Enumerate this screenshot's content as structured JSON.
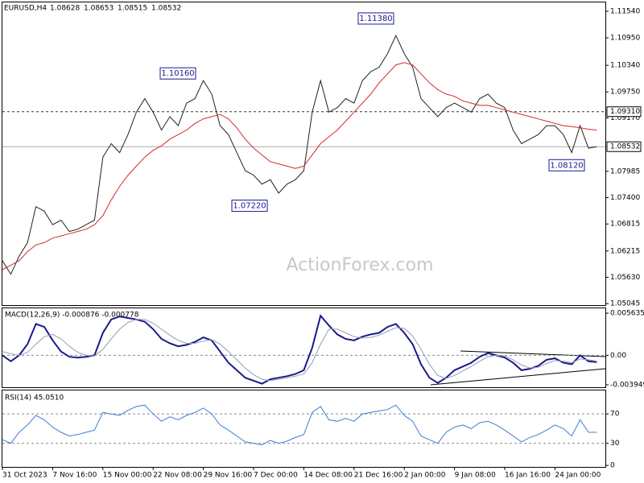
{
  "chart_data": [
    {
      "type": "line",
      "symbol": "EURUSD,H4",
      "ohlc": [
        1.08628,
        1.08653,
        1.08515,
        1.08532
      ],
      "watermark": "ActionForex.com",
      "ylim": [
        1.04995,
        1.11755
      ],
      "yticks": [
        {
          "value": 1.1154,
          "label": "1.11540"
        },
        {
          "value": 1.1095,
          "label": "1.10950"
        },
        {
          "value": 1.1034,
          "label": "1.10340"
        },
        {
          "value": 1.0975,
          "label": "1.09750"
        },
        {
          "value": 1.0917,
          "label": "1.09170"
        },
        {
          "value": 1.07985,
          "label": "1.07985"
        },
        {
          "value": 1.074,
          "label": "1.07400"
        },
        {
          "value": 1.06815,
          "label": "1.06815"
        },
        {
          "value": 1.06215,
          "label": "1.06215"
        },
        {
          "value": 1.0563,
          "label": "1.05630"
        },
        {
          "value": 1.05045,
          "label": "1.05045"
        }
      ],
      "level": {
        "value": 1.0931,
        "label": "1.09310"
      },
      "current": {
        "value": 1.08532,
        "label": "1.08532"
      },
      "annotations": [
        {
          "value": 1.1138,
          "label": "1.11380"
        },
        {
          "value": 1.1016,
          "label": "1.10160"
        },
        {
          "value": 1.0722,
          "label": "1.07220"
        },
        {
          "value": 1.0812,
          "label": "1.08120"
        }
      ],
      "series": [
        {
          "color": "#222222",
          "values": [
            1.06,
            1.057,
            1.061,
            1.064,
            1.072,
            1.071,
            1.068,
            1.069,
            1.0665,
            1.067,
            1.068,
            1.069,
            1.083,
            1.086,
            1.084,
            1.088,
            1.093,
            1.096,
            1.093,
            1.089,
            1.092,
            1.09,
            1.095,
            1.096,
            1.1,
            1.097,
            1.09,
            1.088,
            1.084,
            1.08,
            1.079,
            1.077,
            1.078,
            1.075,
            1.077,
            1.078,
            1.08,
            1.093,
            1.1,
            1.093,
            1.094,
            1.096,
            1.095,
            1.1,
            1.102,
            1.103,
            1.106,
            1.11,
            1.106,
            1.103,
            1.096,
            1.094,
            1.092,
            1.094,
            1.095,
            1.094,
            1.093,
            1.096,
            1.097,
            1.095,
            1.094,
            1.089,
            1.086,
            1.087,
            1.088,
            1.09,
            1.09,
            1.088,
            1.084,
            1.09,
            1.085,
            1.08532
          ]
        },
        {
          "color": "#d42a2a",
          "values": [
            1.058,
            1.059,
            1.06,
            1.062,
            1.0635,
            1.064,
            1.065,
            1.0655,
            1.066,
            1.0665,
            1.067,
            1.068,
            1.07,
            1.0735,
            1.0765,
            1.079,
            1.081,
            1.083,
            1.0845,
            1.0855,
            1.087,
            1.088,
            1.089,
            1.0905,
            1.0915,
            1.092,
            1.0925,
            1.0915,
            1.0895,
            1.087,
            1.085,
            1.0835,
            1.082,
            1.0815,
            1.081,
            1.0805,
            1.081,
            1.0835,
            1.086,
            1.0875,
            1.089,
            1.091,
            1.093,
            1.095,
            1.097,
            1.0995,
            1.1015,
            1.1035,
            1.104,
            1.1035,
            1.1015,
            1.0995,
            1.098,
            1.097,
            1.0965,
            1.0955,
            1.095,
            1.0945,
            1.0945,
            1.094,
            1.0935,
            1.093,
            1.0925,
            1.092,
            1.0915,
            1.091,
            1.0905,
            1.09,
            1.0898,
            1.0895,
            1.0892,
            1.089
          ]
        }
      ]
    },
    {
      "type": "line",
      "title": "MACD(12,26,9) -0.000876 -0.000778",
      "ylim": [
        -0.00438,
        0.0064
      ],
      "yticks": [
        0.005635,
        {
          "value": 0,
          "label": "0.00"
        },
        -0.003949
      ],
      "zero_line": true,
      "series": [
        {
          "color": "#1a1a8c",
          "values": [
            0.0,
            -0.0008,
            0.0,
            0.0015,
            0.0042,
            0.0038,
            0.002,
            0.0005,
            -0.0002,
            -0.0003,
            -0.0002,
            0.0,
            0.003,
            0.0048,
            0.0052,
            0.005,
            0.0048,
            0.0045,
            0.0035,
            0.0022,
            0.0016,
            0.0012,
            0.0014,
            0.0018,
            0.0024,
            0.002,
            0.0005,
            -0.001,
            -0.002,
            -0.003,
            -0.0034,
            -0.0038,
            -0.0032,
            -0.003,
            -0.0028,
            -0.0025,
            -0.002,
            0.001,
            0.0053,
            0.004,
            0.0028,
            0.0022,
            0.002,
            0.0025,
            0.0028,
            0.003,
            0.0038,
            0.0042,
            0.003,
            0.0015,
            -0.0012,
            -0.003,
            -0.0037,
            -0.003,
            -0.002,
            -0.0015,
            -0.001,
            -0.0002,
            0.0003,
            0.0,
            -0.0003,
            -0.001,
            -0.002,
            -0.0018,
            -0.0014,
            -0.0006,
            -0.0004,
            -0.001,
            -0.0012,
            0.0,
            -0.0008,
            -0.0009
          ]
        },
        {
          "color": "#9a9ab8",
          "values": [
            0.0005,
            0.0002,
            0.0,
            0.0004,
            0.0015,
            0.0025,
            0.0028,
            0.0022,
            0.0012,
            0.0004,
            0.0,
            -0.0001,
            0.0008,
            0.0022,
            0.0035,
            0.0044,
            0.0048,
            0.0048,
            0.0043,
            0.0035,
            0.0027,
            0.002,
            0.0016,
            0.0016,
            0.0019,
            0.0021,
            0.0015,
            0.0005,
            -0.0006,
            -0.0017,
            -0.0026,
            -0.0032,
            -0.0034,
            -0.0032,
            -0.003,
            -0.0028,
            -0.0025,
            -0.001,
            0.0015,
            0.0035,
            0.0035,
            0.003,
            0.0025,
            0.0023,
            0.0024,
            0.0027,
            0.0032,
            0.0037,
            0.0036,
            0.0026,
            0.0008,
            -0.0012,
            -0.0027,
            -0.0031,
            -0.0027,
            -0.0021,
            -0.0015,
            -0.0008,
            -0.0002,
            0.0,
            -0.0001,
            -0.0006,
            -0.0013,
            -0.0017,
            -0.0016,
            -0.0011,
            -0.0007,
            -0.0008,
            -0.001,
            -0.0005,
            -0.0006,
            -0.0008
          ]
        }
      ]
    },
    {
      "type": "line",
      "title": "RSI(14) 45.0510",
      "ylim": [
        -2,
        103
      ],
      "yticks": [
        70,
        30,
        0
      ],
      "levels": [
        70,
        30
      ],
      "categories": [
        "31 Oct 2023",
        null,
        null,
        null,
        null,
        null,
        "7 Nov 16:00",
        null,
        null,
        null,
        null,
        null,
        "15 Nov 00:00",
        null,
        null,
        null,
        null,
        null,
        "22 Nov 08:00",
        null,
        null,
        null,
        null,
        null,
        "29 Nov 16:00",
        null,
        null,
        null,
        null,
        null,
        "7 Dec 00:00",
        null,
        null,
        null,
        null,
        null,
        "14 Dec 08:00",
        null,
        null,
        null,
        null,
        null,
        "21 Dec 16:00",
        null,
        null,
        null,
        null,
        null,
        "2 Jan 00:00",
        null,
        null,
        null,
        null,
        null,
        "9 Jan 08:00",
        null,
        null,
        null,
        null,
        null,
        "16 Jan 16:00",
        null,
        null,
        null,
        null,
        null,
        "24 Jan 00:00",
        null,
        null,
        null,
        null,
        null
      ],
      "series": [
        {
          "color": "#3a7fd0",
          "values": [
            35,
            30,
            45,
            55,
            68,
            62,
            52,
            45,
            40,
            42,
            45,
            48,
            72,
            70,
            68,
            75,
            80,
            82,
            70,
            60,
            66,
            62,
            68,
            72,
            78,
            70,
            55,
            48,
            40,
            32,
            30,
            28,
            34,
            30,
            33,
            38,
            42,
            72,
            80,
            62,
            60,
            64,
            60,
            70,
            72,
            74,
            76,
            82,
            68,
            60,
            40,
            35,
            30,
            45,
            52,
            55,
            50,
            58,
            60,
            55,
            48,
            40,
            32,
            38,
            42,
            48,
            55,
            50,
            40,
            62,
            45,
            45.051
          ]
        }
      ]
    }
  ]
}
